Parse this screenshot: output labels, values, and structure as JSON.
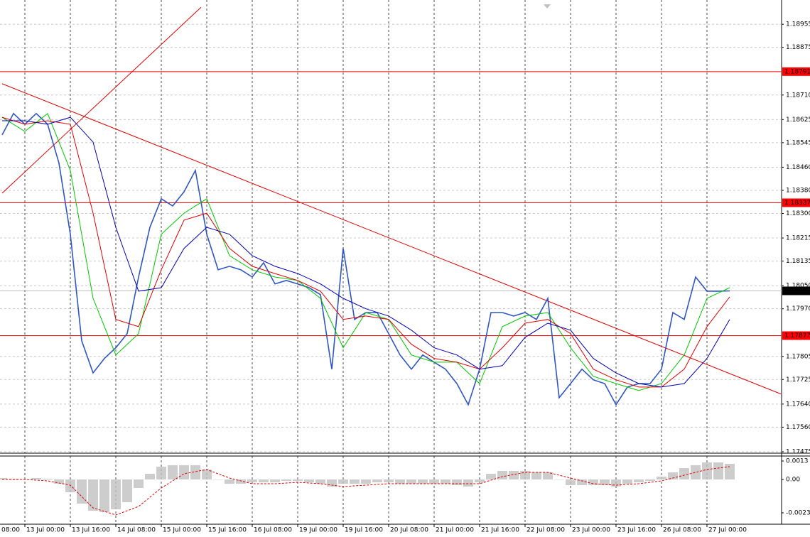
{
  "chart_data": [
    {
      "type": "line",
      "xlim": [
        -8.75,
        266.25
      ],
      "ylim": [
        1.1747,
        1.19039
      ],
      "yticks": [
        1.18955,
        1.18875,
        {
          "value": 1.1871,
          "label": "1.18710"
        },
        1.18625,
        1.18545,
        {
          "value": 1.1846,
          "label": "1.18460"
        },
        {
          "value": 1.1838,
          "label": "1.18380"
        },
        {
          "value": 1.183,
          "label": "1.18300"
        },
        1.18215,
        1.18135,
        {
          "value": 1.1805,
          "label": "1.18050"
        },
        {
          "value": 1.1797,
          "label": "1.17970"
        },
        1.17805,
        1.17725,
        {
          "value": 1.1764,
          "label": "1.17640"
        },
        {
          "value": 1.1756,
          "label": "1.17560"
        },
        1.17475
      ],
      "xticks": [
        {
          "value": -16,
          "label": "08:00"
        },
        {
          "value": 0,
          "label": "13 Jul 00:00"
        },
        {
          "value": 16,
          "label": "13 Jul 16:00"
        },
        {
          "value": 32,
          "label": "14 Jul 08:00"
        },
        {
          "value": 48,
          "label": "15 Jul 00:00"
        },
        {
          "value": 64,
          "label": "15 Jul 16:00"
        },
        {
          "value": 80,
          "label": "16 Jul 08:00"
        },
        {
          "value": 96,
          "label": "19 Jul 00:00"
        },
        {
          "value": 112,
          "label": "19 Jul 16:00"
        },
        {
          "value": 128,
          "label": "20 Jul 08:00"
        },
        {
          "value": 144,
          "label": "21 Jul 00:00"
        },
        {
          "value": 160,
          "label": "21 Jul 16:00"
        },
        {
          "value": 176,
          "label": "22 Jul 08:00"
        },
        {
          "value": 192,
          "label": "23 Jul 00:00"
        },
        {
          "value": 208,
          "label": "23 Jul 16:00"
        },
        {
          "value": 224,
          "label": "26 Jul 08:00"
        },
        {
          "value": 240,
          "label": "27 Jul 00:00"
        }
      ],
      "grid": true,
      "x": [
        -8,
        -4,
        0,
        4,
        8,
        12,
        16,
        20,
        24,
        28,
        32,
        36,
        40,
        44,
        48,
        52,
        56,
        60,
        64,
        68,
        72,
        76,
        80,
        84,
        88,
        92,
        96,
        100,
        104,
        108,
        112,
        116,
        120,
        124,
        128,
        132,
        136,
        140,
        144,
        148,
        152,
        156,
        160,
        164,
        168,
        172,
        176,
        180,
        184,
        188,
        192,
        196,
        200,
        204,
        208,
        212,
        216,
        220,
        224,
        228,
        232,
        236,
        240,
        244,
        248
      ],
      "series": [
        {
          "color": "#2f55c4",
          "width": 1.6,
          "values": [
            1.18572,
            1.18646,
            1.18609,
            1.18646,
            1.18609,
            1.18474,
            1.18228,
            1.17859,
            1.17748,
            1.17798,
            1.17835,
            1.17884,
            1.1808,
            1.18252,
            1.18351,
            1.18326,
            1.18375,
            1.18449,
            1.18228,
            1.18105,
            1.18117,
            1.18105,
            1.1808,
            1.18129,
            1.18056,
            1.18068,
            1.18056,
            1.18043,
            1.18019,
            1.17761,
            1.18179,
            1.17933,
            1.17957,
            1.17957,
            1.17884,
            1.1781,
            1.17761,
            1.1781,
            1.17785,
            1.17761,
            1.17711,
            1.17638,
            1.17761,
            1.17957,
            1.17957,
            1.17945,
            1.17957,
            1.17933,
            1.18006,
            1.17662,
            1.17711,
            1.17761,
            1.17724,
            1.17711,
            1.17638,
            1.17699,
            1.17711,
            1.17711,
            1.17761,
            1.17957,
            1.17933,
            1.1808,
            1.18031,
            1.18031,
            1.18032
          ]
        },
        {
          "color": "#00c800",
          "width": 1,
          "x": [
            -8,
            0,
            8,
            16,
            24,
            32,
            40,
            48,
            56,
            64,
            72,
            80,
            88,
            96,
            104,
            112,
            120,
            128,
            136,
            144,
            152,
            160,
            168,
            176,
            184,
            192,
            200,
            208,
            216,
            224,
            232,
            240,
            248
          ],
          "values": [
            1.18633,
            1.18584,
            1.18646,
            1.18449,
            1.18006,
            1.1781,
            1.17884,
            1.18228,
            1.18301,
            1.18351,
            1.18154,
            1.18105,
            1.1808,
            1.18068,
            1.18006,
            1.17835,
            1.17957,
            1.17933,
            1.1781,
            1.17785,
            1.17785,
            1.17711,
            1.17908,
            1.17945,
            1.17957,
            1.17835,
            1.17736,
            1.17711,
            1.17687,
            1.17711,
            1.1781,
            1.18006,
            1.18043
          ]
        },
        {
          "color": "#e00000",
          "width": 1,
          "x": [
            -8,
            0,
            8,
            16,
            24,
            32,
            40,
            48,
            56,
            64,
            72,
            80,
            88,
            96,
            104,
            112,
            120,
            128,
            136,
            144,
            152,
            160,
            168,
            176,
            184,
            192,
            200,
            208,
            216,
            224,
            232,
            240,
            248
          ],
          "values": [
            1.18633,
            1.18609,
            1.18621,
            1.18609,
            1.18301,
            1.17933,
            1.17908,
            1.18105,
            1.18277,
            1.18301,
            1.18179,
            1.18117,
            1.18092,
            1.18068,
            1.18031,
            1.17933,
            1.17945,
            1.17933,
            1.17847,
            1.17798,
            1.17785,
            1.17761,
            1.17835,
            1.1792,
            1.17933,
            1.17884,
            1.17761,
            1.17724,
            1.17699,
            1.17699,
            1.17761,
            1.17908,
            1.18011
          ]
        },
        {
          "color": "#0000b4",
          "width": 1,
          "x": [
            -8,
            0,
            8,
            16,
            24,
            32,
            40,
            48,
            56,
            64,
            72,
            80,
            88,
            96,
            104,
            112,
            120,
            128,
            136,
            144,
            152,
            160,
            168,
            176,
            184,
            192,
            200,
            208,
            216,
            224,
            232,
            240,
            248
          ],
          "values": [
            1.18621,
            1.18621,
            1.18609,
            1.18633,
            1.18547,
            1.18252,
            1.18031,
            1.18043,
            1.18179,
            1.18252,
            1.18228,
            1.18154,
            1.18117,
            1.18092,
            1.18056,
            1.18006,
            1.1797,
            1.17945,
            1.17896,
            1.17835,
            1.1781,
            1.17761,
            1.17773,
            1.17871,
            1.1792,
            1.17896,
            1.17798,
            1.17748,
            1.17711,
            1.17699,
            1.17711,
            1.17798,
            1.17933
          ]
        }
      ],
      "trendlines": [
        {
          "color": "#e00000",
          "x": [
            -8,
            266
          ],
          "values": [
            1.18749,
            1.17675
          ]
        },
        {
          "color": "#e00000",
          "x": [
            -8,
            62
          ],
          "values": [
            1.1837,
            1.19014
          ]
        }
      ],
      "levels": [
        {
          "value": 1.18791,
          "color": "#ff0000"
        },
        {
          "value": 1.18337,
          "color": "#ff0000"
        },
        {
          "value": 1.17877,
          "color": "#ff0000"
        }
      ],
      "last_price": 1.18032
    },
    {
      "type": "oscillator",
      "xlim": [
        -8.75,
        266.25
      ],
      "ylim": [
        -0.00315,
        0.00165
      ],
      "yticks": [
        0.0013,
        {
          "value": 0,
          "label": "0.00"
        },
        -0.00235
      ],
      "series": [
        {
          "style": "bar",
          "color": "#c0c0c0",
          "x": [
            -8,
            -4,
            0,
            4,
            8,
            12,
            16,
            20,
            24,
            28,
            32,
            36,
            40,
            44,
            48,
            52,
            56,
            60,
            64,
            68,
            72,
            76,
            80,
            84,
            88,
            92,
            96,
            100,
            104,
            108,
            112,
            116,
            120,
            124,
            128,
            132,
            136,
            140,
            144,
            148,
            152,
            156,
            160,
            164,
            168,
            172,
            176,
            180,
            184,
            188,
            192,
            196,
            200,
            204,
            208,
            212,
            216,
            220,
            224,
            228,
            232,
            236,
            240,
            244,
            248
          ],
          "values": [
            0.0001,
            5e-05,
            0,
            0.0001,
            5e-05,
            -0.0003,
            -0.0009,
            -0.0017,
            -0.0022,
            -0.0023,
            -0.0021,
            -0.0016,
            -0.0006,
            0.0004,
            0.0009,
            0.001,
            0.001,
            0.001,
            0.0007,
            0,
            -0.0003,
            -0.0003,
            -0.0002,
            -0.0002,
            -0.0002,
            -0.0001,
            -0.0001,
            -0.0002,
            -0.0003,
            -0.0005,
            -0.0003,
            -0.0003,
            -0.0003,
            -0.0002,
            -0.0002,
            -0.0003,
            -0.0003,
            -0.0003,
            -0.0003,
            -0.0003,
            -0.0004,
            -0.0005,
            -0.0002,
            0.0004,
            0.0006,
            0.0006,
            0.0006,
            0.0005,
            0.0005,
            0,
            -0.0004,
            -0.0004,
            -0.0004,
            -0.0004,
            -0.0005,
            -0.0003,
            -0.0002,
            -0.0001,
            0.0002,
            0.0005,
            0.0008,
            0.001,
            0.0012,
            0.0012,
            0.0011
          ]
        },
        {
          "style": "dashed",
          "color": "#e00000",
          "x": [
            -8,
            0,
            8,
            16,
            24,
            32,
            40,
            48,
            56,
            64,
            72,
            80,
            88,
            96,
            104,
            112,
            120,
            128,
            136,
            144,
            152,
            160,
            168,
            176,
            184,
            192,
            200,
            208,
            216,
            224,
            232,
            240,
            248
          ],
          "values": [
            0,
            0,
            -0.0001,
            -0.0004,
            -0.002,
            -0.0025,
            -0.0019,
            -0.0006,
            0.0004,
            0.0007,
            0.0001,
            -0.0003,
            -0.0003,
            -0.0002,
            -0.0003,
            -0.0005,
            -0.0004,
            -0.0003,
            -0.0003,
            -0.0003,
            -0.0003,
            -0.0003,
            0.0002,
            0.0005,
            0.0005,
            0.0001,
            -0.0003,
            -0.0004,
            -0.0003,
            -0.0001,
            0.0003,
            0.0007,
            0.0009
          ]
        }
      ]
    }
  ]
}
